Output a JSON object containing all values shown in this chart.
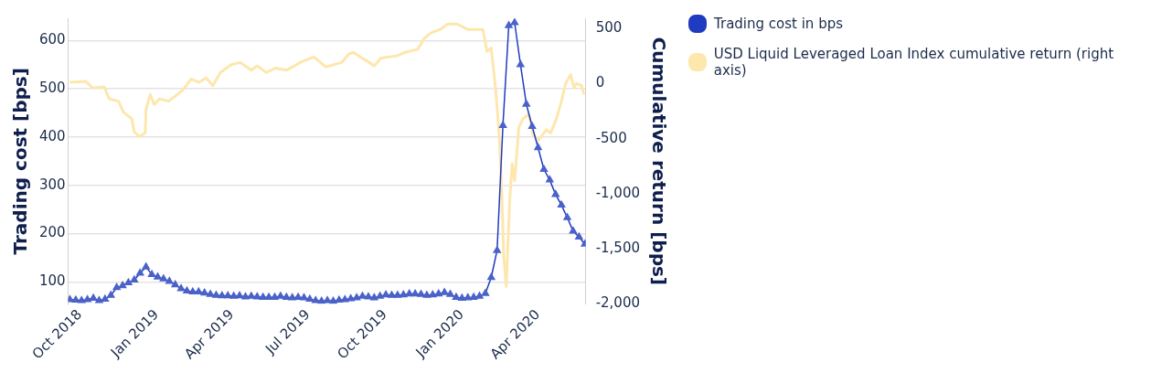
{
  "chart_data": {
    "type": "line",
    "ylabel": "Trading cost [bps]",
    "y2label": "Cumulative return [bps]",
    "xlim": [
      "2018-09-17",
      "2020-05-28"
    ],
    "xticks": [
      {
        "value": "2018-10-01",
        "label": "Oct 2018"
      },
      {
        "value": "2019-01-01",
        "label": "Jan 2019"
      },
      {
        "value": "2019-04-01",
        "label": "Apr 2019"
      },
      {
        "value": "2019-07-01",
        "label": "Jul 2019"
      },
      {
        "value": "2019-10-01",
        "label": "Oct 2019"
      },
      {
        "value": "2020-01-01",
        "label": "Jan 2020"
      },
      {
        "value": "2020-04-01",
        "label": "Apr 2020"
      }
    ],
    "ylim": [
      54,
      646
    ],
    "yticks": [
      100,
      200,
      300,
      400,
      500,
      600
    ],
    "y2lim": [
      -2000,
      591
    ],
    "y2ticks": [
      {
        "value": -2000,
        "label": "-2,000"
      },
      {
        "value": -1500,
        "label": "-1,500"
      },
      {
        "value": -1000,
        "label": "-1,000"
      },
      {
        "value": -500,
        "label": "-500"
      },
      0,
      500
    ],
    "grid": "y",
    "legend": "top right",
    "series": [
      {
        "name": "Trading cost in bps",
        "color": "#1f3bbf",
        "marker": "triangle",
        "x": [
          "2018-09-19",
          "2018-09-26",
          "2018-10-03",
          "2018-10-10",
          "2018-10-17",
          "2018-10-24",
          "2018-10-31",
          "2018-11-07",
          "2018-11-14",
          "2018-11-21",
          "2018-11-28",
          "2018-12-05",
          "2018-12-12",
          "2018-12-19",
          "2018-12-26",
          "2019-01-02",
          "2019-01-09",
          "2019-01-16",
          "2019-01-23",
          "2019-01-30",
          "2019-02-06",
          "2019-02-13",
          "2019-02-20",
          "2019-02-27",
          "2019-03-06",
          "2019-03-13",
          "2019-03-20",
          "2019-03-27",
          "2019-04-03",
          "2019-04-10",
          "2019-04-17",
          "2019-04-24",
          "2019-05-01",
          "2019-05-08",
          "2019-05-15",
          "2019-05-22",
          "2019-05-29",
          "2019-06-05",
          "2019-06-12",
          "2019-06-19",
          "2019-06-26",
          "2019-07-03",
          "2019-07-10",
          "2019-07-17",
          "2019-07-24",
          "2019-07-31",
          "2019-08-07",
          "2019-08-14",
          "2019-08-21",
          "2019-08-28",
          "2019-09-04",
          "2019-09-11",
          "2019-09-18",
          "2019-09-25",
          "2019-10-02",
          "2019-10-09",
          "2019-10-16",
          "2019-10-23",
          "2019-10-30",
          "2019-11-06",
          "2019-11-13",
          "2019-11-20",
          "2019-11-27",
          "2019-12-04",
          "2019-12-11",
          "2019-12-18",
          "2019-12-25",
          "2020-01-01",
          "2020-01-08",
          "2020-01-15",
          "2020-01-22",
          "2020-01-29",
          "2020-02-05",
          "2020-02-12",
          "2020-02-19",
          "2020-02-26",
          "2020-03-04",
          "2020-03-11",
          "2020-03-18",
          "2020-03-25",
          "2020-04-01",
          "2020-04-08",
          "2020-04-15",
          "2020-04-22",
          "2020-04-29",
          "2020-05-06",
          "2020-05-13",
          "2020-05-20",
          "2020-05-27"
        ],
        "values": [
          63,
          62,
          61,
          63,
          66,
          61,
          64,
          72,
          88,
          92,
          98,
          104,
          118,
          131,
          115,
          110,
          106,
          101,
          94,
          86,
          81,
          79,
          79,
          77,
          74,
          72,
          71,
          71,
          70,
          71,
          69,
          70,
          69,
          68,
          68,
          68,
          70,
          68,
          67,
          68,
          67,
          64,
          61,
          60,
          61,
          60,
          62,
          63,
          65,
          67,
          70,
          69,
          67,
          70,
          73,
          72,
          72,
          73,
          75,
          75,
          74,
          72,
          73,
          75,
          78,
          74,
          68,
          66,
          67,
          68,
          70,
          76,
          109,
          165,
          424,
          631,
          637,
          550,
          468,
          422,
          378,
          333,
          311,
          281,
          259,
          233,
          205,
          193,
          178
        ]
      },
      {
        "name": "USD Liquid Leveraged Loan Index cumulative return (right axis)",
        "color": "#fde7ad",
        "marker": "none",
        "axis": "y2",
        "x": [
          "2018-09-19",
          "2018-10-08",
          "2018-10-16",
          "2018-10-30",
          "2018-11-05",
          "2018-11-16",
          "2018-11-22",
          "2018-12-02",
          "2018-12-05",
          "2018-12-11",
          "2018-12-18",
          "2018-12-19",
          "2018-12-24",
          "2018-12-29",
          "2019-01-04",
          "2019-01-15",
          "2019-01-24",
          "2019-02-01",
          "2019-02-11",
          "2019-02-20",
          "2019-03-01",
          "2019-03-09",
          "2019-03-18",
          "2019-03-31",
          "2019-04-11",
          "2019-04-24",
          "2019-05-01",
          "2019-05-12",
          "2019-05-23",
          "2019-06-05",
          "2019-06-24",
          "2019-07-08",
          "2019-07-22",
          "2019-08-10",
          "2019-08-19",
          "2019-08-24",
          "2019-09-12",
          "2019-09-18",
          "2019-09-26",
          "2019-10-15",
          "2019-10-24",
          "2019-11-09",
          "2019-11-17",
          "2019-11-25",
          "2019-12-06",
          "2019-12-15",
          "2019-12-26",
          "2020-01-08",
          "2020-01-19",
          "2020-01-26",
          "2020-01-31",
          "2020-02-05",
          "2020-02-10",
          "2020-02-14",
          "2020-02-17",
          "2020-02-20",
          "2020-02-23",
          "2020-02-27",
          "2020-03-01",
          "2020-03-04",
          "2020-03-09",
          "2020-03-14",
          "2020-03-21",
          "2020-03-26",
          "2020-04-01",
          "2020-04-11",
          "2020-04-16",
          "2020-04-23",
          "2020-04-29",
          "2020-05-04",
          "2020-05-10",
          "2020-05-14",
          "2020-05-17",
          "2020-05-23",
          "2020-05-26"
        ],
        "values": [
          10,
          20,
          -40,
          -30,
          -140,
          -160,
          -260,
          -320,
          -440,
          -480,
          -450,
          -240,
          -100,
          -190,
          -140,
          -160,
          -110,
          -60,
          40,
          10,
          50,
          -20,
          100,
          170,
          190,
          120,
          160,
          100,
          140,
          120,
          200,
          240,
          150,
          190,
          270,
          280,
          190,
          160,
          230,
          250,
          280,
          310,
          410,
          460,
          490,
          540,
          540,
          490,
          490,
          490,
          290,
          320,
          -30,
          -400,
          -840,
          -1570,
          -1840,
          -1080,
          -730,
          -880,
          -400,
          -320,
          -280,
          -460,
          -520,
          -420,
          -450,
          -320,
          -160,
          0,
          80,
          -40,
          0,
          -20,
          -100
        ]
      }
    ]
  }
}
